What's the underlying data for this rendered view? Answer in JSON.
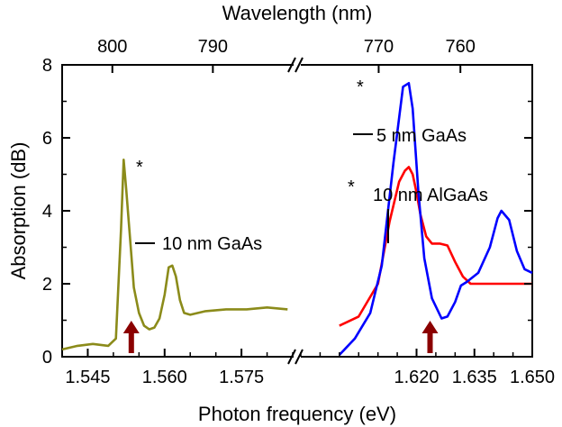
{
  "chart_data": {
    "type": "line",
    "xlabel": "Photon frequency (eV)",
    "ylabel": "Absorption (dB)",
    "top_axis_label": "Wavelength (nm)",
    "ylim": [
      0,
      8
    ],
    "y_ticks": [
      "0",
      "2",
      "4",
      "6",
      "8"
    ],
    "x_broken_axis": true,
    "panels": [
      {
        "xlim": [
          1.54,
          1.585
        ],
        "x_ticks": [
          "1.545",
          "1.560",
          "1.575"
        ],
        "top_ticks": [
          "800",
          "790"
        ]
      },
      {
        "xlim": [
          1.59,
          1.65
        ],
        "x_ticks": [
          "1.620",
          "1.635",
          "1.650"
        ],
        "top_ticks": [
          "770",
          "760"
        ]
      }
    ],
    "series": [
      {
        "name": "10 nm GaAs",
        "color": "#8b8b1a",
        "panel": 0,
        "x": [
          1.54,
          1.543,
          1.546,
          1.549,
          1.5505,
          1.5515,
          1.552,
          1.5525,
          1.5535,
          1.554,
          1.555,
          1.556,
          1.557,
          1.558,
          1.559,
          1.56,
          1.5608,
          1.5615,
          1.5622,
          1.563,
          1.5638,
          1.565,
          1.568,
          1.572,
          1.576,
          1.58,
          1.584
        ],
        "y": [
          0.2,
          0.3,
          0.35,
          0.3,
          0.5,
          3.5,
          5.4,
          4.6,
          2.8,
          1.9,
          1.2,
          0.85,
          0.75,
          0.8,
          1.05,
          1.7,
          2.45,
          2.5,
          2.2,
          1.55,
          1.2,
          1.15,
          1.25,
          1.3,
          1.3,
          1.35,
          1.3
        ]
      },
      {
        "name": "10 nm AlGaAs",
        "color": "#ff0000",
        "panel": 1,
        "x": [
          1.6,
          1.605,
          1.61,
          1.613,
          1.6155,
          1.617,
          1.618,
          1.619,
          1.62,
          1.621,
          1.6225,
          1.624,
          1.626,
          1.628,
          1.63,
          1.632,
          1.634,
          1.637,
          1.64,
          1.645,
          1.65
        ],
        "y": [
          0.85,
          1.1,
          2.0,
          3.7,
          4.8,
          5.1,
          5.2,
          5.0,
          4.5,
          3.9,
          3.3,
          3.1,
          3.1,
          3.05,
          2.6,
          2.2,
          2.0,
          2.0,
          2.0,
          2.0,
          2.0
        ]
      },
      {
        "name": "5 nm GaAs",
        "color": "#0000ff",
        "panel": 1,
        "x": [
          1.6,
          1.604,
          1.608,
          1.611,
          1.614,
          1.6165,
          1.618,
          1.619,
          1.6205,
          1.622,
          1.624,
          1.6265,
          1.628,
          1.63,
          1.6315,
          1.633,
          1.636,
          1.639,
          1.641,
          1.642,
          1.644,
          1.646,
          1.648,
          1.65
        ],
        "y": [
          0.05,
          0.5,
          1.2,
          2.5,
          5.3,
          7.4,
          7.5,
          6.8,
          4.5,
          2.7,
          1.6,
          1.05,
          1.1,
          1.5,
          1.95,
          2.05,
          2.3,
          3.0,
          3.8,
          4.0,
          3.75,
          2.9,
          2.4,
          2.3
        ]
      }
    ],
    "annotations": {
      "label_gaas10": "10 nm GaAs",
      "label_gaas5": "5 nm GaAs",
      "label_algaas10": "10 nm AlGaAs",
      "star": "*"
    },
    "markers": [
      {
        "x": 1.5535,
        "panel": 0,
        "color": "#8b0000"
      },
      {
        "x": 1.6235,
        "panel": 1,
        "color": "#8b0000"
      }
    ]
  }
}
